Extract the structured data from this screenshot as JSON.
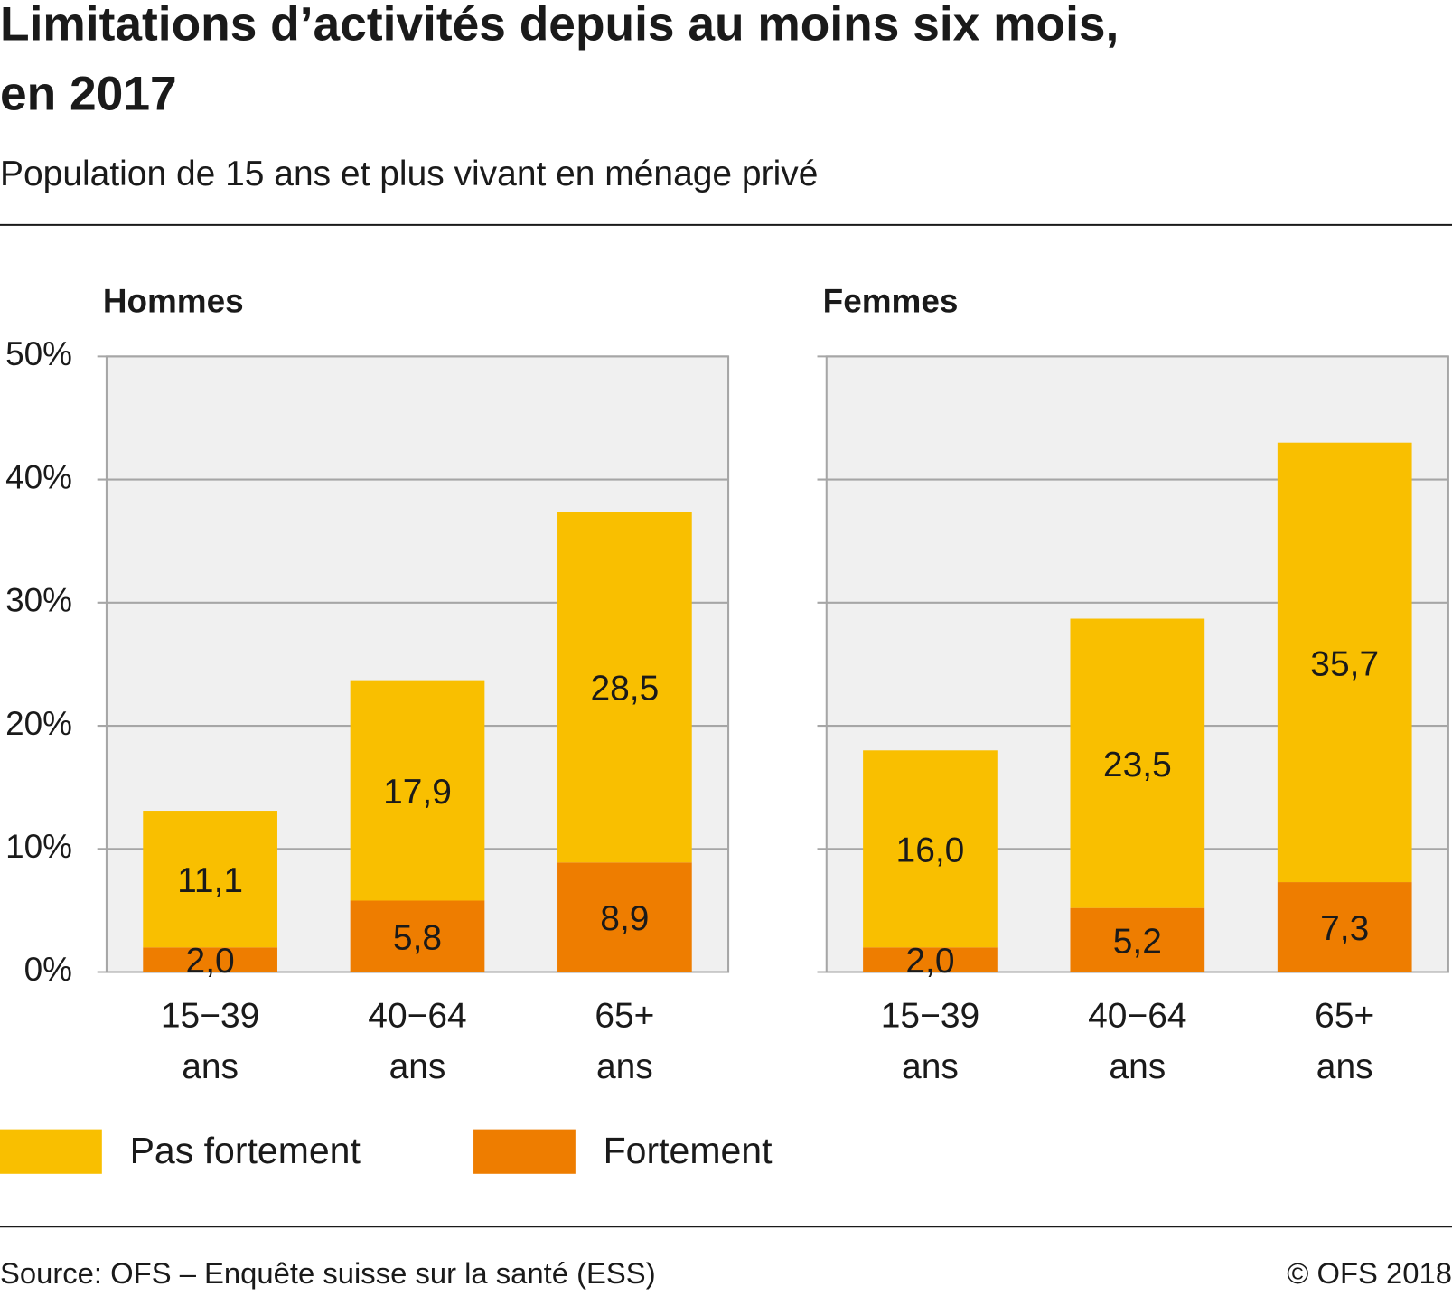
{
  "title": "Limitations d’activités depuis au moins six mois, en 2017",
  "subtitle": "Population de 15 ans et plus vivant en ménage privé",
  "source": "Source: OFS – Enquête suisse sur la santé (ESS)",
  "copyright": "© OFS 2018",
  "chart_data": [
    {
      "type": "stacked-bar",
      "title": "Hommes",
      "categories": [
        "15−39 ans",
        "40−64 ans",
        "65+ ans"
      ],
      "series": [
        {
          "name": "Fortement",
          "color": "#ee7d00",
          "values": [
            2.0,
            5.8,
            8.9
          ],
          "value_labels": [
            "2,0",
            "5,8",
            "8,9"
          ]
        },
        {
          "name": "Pas fortement",
          "color": "#f9bf00",
          "values": [
            11.1,
            17.9,
            28.5
          ],
          "value_labels": [
            "11,1",
            "17,9",
            "28,5"
          ]
        }
      ],
      "ylim": [
        0,
        50
      ],
      "yticks": [
        {
          "value": 0,
          "label": "0%"
        },
        {
          "value": 10,
          "label": "10%"
        },
        {
          "value": 20,
          "label": "20%"
        },
        {
          "value": 30,
          "label": "30%"
        },
        {
          "value": 40,
          "label": "40%"
        },
        {
          "value": 50,
          "label": "50%"
        }
      ],
      "grid": true
    },
    {
      "type": "stacked-bar",
      "title": "Femmes",
      "categories": [
        "15−39 ans",
        "40−64 ans",
        "65+ ans"
      ],
      "series": [
        {
          "name": "Fortement",
          "color": "#ee7d00",
          "values": [
            2.0,
            5.2,
            7.3
          ],
          "value_labels": [
            "2,0",
            "5,2",
            "7,3"
          ]
        },
        {
          "name": "Pas fortement",
          "color": "#f9bf00",
          "values": [
            16.0,
            23.5,
            35.7
          ],
          "value_labels": [
            "16,0",
            "23,5",
            "35,7"
          ]
        }
      ],
      "ylim": [
        0,
        50
      ],
      "yticks": [
        0,
        10,
        20,
        30,
        40,
        50
      ],
      "grid": true
    }
  ]
}
